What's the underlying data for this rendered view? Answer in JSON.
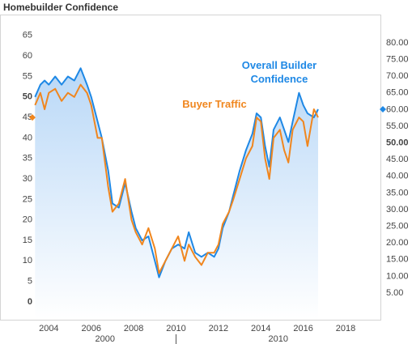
{
  "chart_data": {
    "type": "line",
    "title": "Homebuilder Confidence",
    "x": [
      2003.35,
      2003.6,
      2003.8,
      2004.0,
      2004.3,
      2004.6,
      2004.9,
      2005.2,
      2005.5,
      2005.8,
      2006.0,
      2006.3,
      2006.5,
      2006.8,
      2007.0,
      2007.3,
      2007.6,
      2007.9,
      2008.1,
      2008.4,
      2008.7,
      2009.0,
      2009.2,
      2009.5,
      2009.8,
      2010.1,
      2010.4,
      2010.6,
      2010.9,
      2011.2,
      2011.5,
      2011.8,
      2012.0,
      2012.2,
      2012.5,
      2012.7,
      2013.0,
      2013.3,
      2013.6,
      2013.8,
      2014.0,
      2014.2,
      2014.4,
      2014.6,
      2014.9,
      2015.1,
      2015.3,
      2015.5,
      2015.8,
      2016.0,
      2016.2,
      2016.5,
      2016.7
    ],
    "series": [
      {
        "name": "Overall Builder Confidence",
        "color": "#1e88e5",
        "area": true,
        "values": [
          50,
          53,
          54,
          53,
          55,
          53,
          55,
          54,
          57,
          53,
          50,
          44,
          40,
          32,
          24,
          23,
          29,
          22,
          18,
          15,
          16,
          10,
          6,
          10,
          13,
          14,
          13,
          17,
          12,
          11,
          12,
          11,
          13,
          18,
          22,
          26,
          32,
          37,
          41,
          46,
          45,
          38,
          33,
          42,
          45,
          42,
          39,
          44,
          51,
          48,
          46,
          45,
          47
        ]
      },
      {
        "name": "Buyer Traffic",
        "color": "#f0861e",
        "values": [
          48,
          51,
          47,
          51,
          52,
          49,
          51,
          50,
          53,
          51,
          48,
          40,
          40,
          28,
          22,
          24,
          30,
          20,
          17,
          14,
          18,
          13,
          7,
          10,
          13,
          16,
          10,
          14,
          11,
          9,
          12,
          12,
          14,
          19,
          22,
          25,
          30,
          35,
          38,
          45,
          44,
          35,
          30,
          40,
          42,
          37,
          34,
          42,
          45,
          44,
          38,
          47,
          45
        ]
      }
    ],
    "xlim": [
      2003.3,
      2019.64
    ],
    "xticks": [
      2004,
      2006,
      2008,
      2010,
      2012,
      2014,
      2016,
      2018
    ],
    "decades": {
      "labels": [
        "2000",
        "2010"
      ],
      "boundary": 2010
    },
    "ylim": [
      -4.35,
      70.1
    ],
    "yticks": [
      0,
      5,
      10,
      15,
      20,
      25,
      30,
      35,
      40,
      45,
      50,
      55,
      60,
      65
    ],
    "y2lim": [
      -3,
      88.5
    ],
    "y2ticks": [
      {
        "value": 5,
        "label": "5.00"
      },
      {
        "value": 10,
        "label": "10.00"
      },
      {
        "value": 15,
        "label": "15.00"
      },
      {
        "value": 20,
        "label": "20.00"
      },
      {
        "value": 25,
        "label": "25.00"
      },
      {
        "value": 30,
        "label": "30.00"
      },
      {
        "value": 35,
        "label": "35.00"
      },
      {
        "value": 40,
        "label": "40.00"
      },
      {
        "value": 45,
        "label": "45.00"
      },
      {
        "value": 50,
        "label": "50.00"
      },
      {
        "value": 55,
        "label": "55.00"
      },
      {
        "value": 60,
        "label": "60.00"
      },
      {
        "value": 65,
        "label": "65.00"
      },
      {
        "value": 70,
        "label": "70.00"
      },
      {
        "value": 75,
        "label": "75.00"
      },
      {
        "value": 80,
        "label": "80.00"
      }
    ],
    "bold_ticks": {
      "y": [
        0,
        50
      ],
      "y2": [
        50
      ]
    },
    "grid": false
  }
}
